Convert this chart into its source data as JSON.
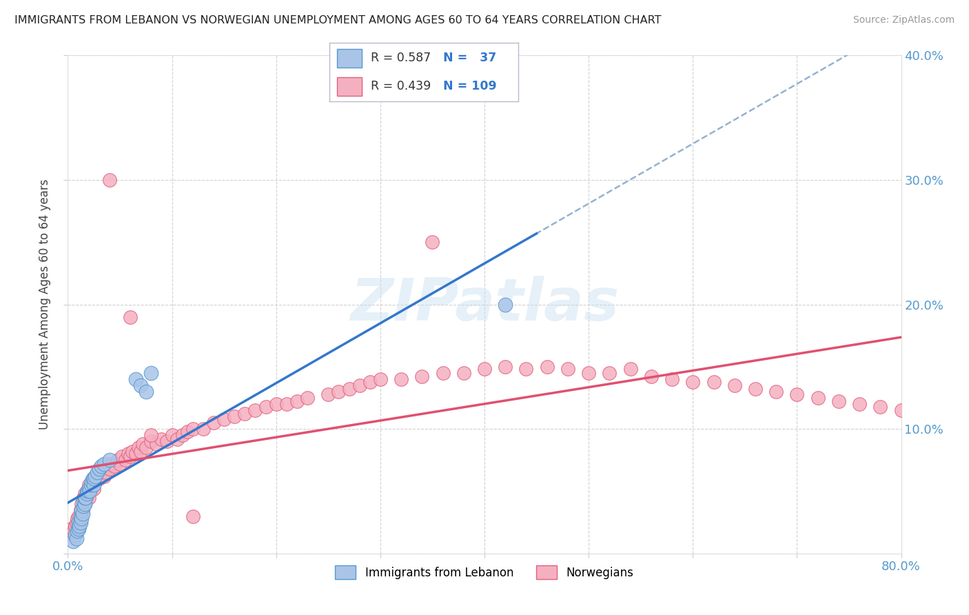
{
  "title": "IMMIGRANTS FROM LEBANON VS NORWEGIAN UNEMPLOYMENT AMONG AGES 60 TO 64 YEARS CORRELATION CHART",
  "source": "Source: ZipAtlas.com",
  "ylabel": "Unemployment Among Ages 60 to 64 years",
  "xlim": [
    0.0,
    0.8
  ],
  "ylim": [
    0.0,
    0.4
  ],
  "xticks": [
    0.0,
    0.1,
    0.2,
    0.3,
    0.4,
    0.5,
    0.6,
    0.7,
    0.8
  ],
  "yticks": [
    0.0,
    0.1,
    0.2,
    0.3,
    0.4
  ],
  "legend1_R": "0.587",
  "legend1_N": "37",
  "legend2_R": "0.439",
  "legend2_N": "109",
  "blue_color": "#aac4e8",
  "blue_edge": "#5599cc",
  "pink_color": "#f5b0c0",
  "pink_edge": "#e06080",
  "trend_blue": "#3377cc",
  "trend_pink": "#e05070",
  "trend_dashed": "#88aacc",
  "tick_color": "#5599cc",
  "watermark": "ZIPatlas",
  "background_color": "#ffffff",
  "blue_scatter_x": [
    0.005,
    0.007,
    0.008,
    0.009,
    0.01,
    0.01,
    0.011,
    0.012,
    0.012,
    0.013,
    0.013,
    0.014,
    0.015,
    0.015,
    0.016,
    0.016,
    0.017,
    0.018,
    0.019,
    0.02,
    0.021,
    0.022,
    0.023,
    0.024,
    0.025,
    0.025,
    0.026,
    0.028,
    0.03,
    0.032,
    0.035,
    0.04,
    0.065,
    0.07,
    0.075,
    0.08,
    0.42
  ],
  "blue_scatter_y": [
    0.01,
    0.015,
    0.012,
    0.018,
    0.02,
    0.025,
    0.022,
    0.025,
    0.03,
    0.028,
    0.035,
    0.032,
    0.038,
    0.042,
    0.04,
    0.045,
    0.045,
    0.048,
    0.05,
    0.052,
    0.05,
    0.055,
    0.058,
    0.06,
    0.055,
    0.06,
    0.062,
    0.065,
    0.068,
    0.07,
    0.072,
    0.075,
    0.14,
    0.135,
    0.13,
    0.145,
    0.2
  ],
  "pink_scatter_x": [
    0.003,
    0.005,
    0.006,
    0.007,
    0.008,
    0.009,
    0.01,
    0.01,
    0.011,
    0.012,
    0.012,
    0.013,
    0.013,
    0.014,
    0.015,
    0.015,
    0.016,
    0.016,
    0.017,
    0.018,
    0.018,
    0.019,
    0.02,
    0.02,
    0.021,
    0.022,
    0.023,
    0.024,
    0.025,
    0.026,
    0.027,
    0.028,
    0.03,
    0.032,
    0.033,
    0.035,
    0.036,
    0.038,
    0.04,
    0.042,
    0.045,
    0.048,
    0.05,
    0.052,
    0.055,
    0.058,
    0.06,
    0.062,
    0.065,
    0.068,
    0.07,
    0.072,
    0.075,
    0.08,
    0.085,
    0.09,
    0.095,
    0.1,
    0.105,
    0.11,
    0.115,
    0.12,
    0.13,
    0.14,
    0.15,
    0.16,
    0.17,
    0.18,
    0.19,
    0.2,
    0.21,
    0.22,
    0.23,
    0.25,
    0.26,
    0.27,
    0.28,
    0.29,
    0.3,
    0.32,
    0.34,
    0.36,
    0.38,
    0.4,
    0.42,
    0.44,
    0.46,
    0.48,
    0.5,
    0.52,
    0.54,
    0.56,
    0.58,
    0.6,
    0.62,
    0.64,
    0.66,
    0.68,
    0.7,
    0.72,
    0.74,
    0.76,
    0.78,
    0.8,
    0.35,
    0.04,
    0.06,
    0.08,
    0.12
  ],
  "pink_scatter_y": [
    0.02,
    0.015,
    0.018,
    0.022,
    0.025,
    0.028,
    0.02,
    0.03,
    0.025,
    0.03,
    0.035,
    0.03,
    0.04,
    0.035,
    0.038,
    0.045,
    0.04,
    0.048,
    0.042,
    0.045,
    0.05,
    0.048,
    0.045,
    0.055,
    0.05,
    0.052,
    0.055,
    0.058,
    0.052,
    0.06,
    0.058,
    0.062,
    0.06,
    0.065,
    0.068,
    0.062,
    0.065,
    0.07,
    0.068,
    0.072,
    0.07,
    0.075,
    0.072,
    0.078,
    0.075,
    0.08,
    0.078,
    0.082,
    0.08,
    0.085,
    0.082,
    0.088,
    0.085,
    0.09,
    0.088,
    0.092,
    0.09,
    0.095,
    0.092,
    0.095,
    0.098,
    0.1,
    0.1,
    0.105,
    0.108,
    0.11,
    0.112,
    0.115,
    0.118,
    0.12,
    0.12,
    0.122,
    0.125,
    0.128,
    0.13,
    0.132,
    0.135,
    0.138,
    0.14,
    0.14,
    0.142,
    0.145,
    0.145,
    0.148,
    0.15,
    0.148,
    0.15,
    0.148,
    0.145,
    0.145,
    0.148,
    0.142,
    0.14,
    0.138,
    0.138,
    0.135,
    0.132,
    0.13,
    0.128,
    0.125,
    0.122,
    0.12,
    0.118,
    0.115,
    0.25,
    0.3,
    0.19,
    0.095,
    0.03
  ],
  "blue_trend_x": [
    0.0,
    0.45
  ],
  "pink_trend_x": [
    0.0,
    0.8
  ],
  "dashed_trend_x": [
    0.35,
    0.8
  ]
}
